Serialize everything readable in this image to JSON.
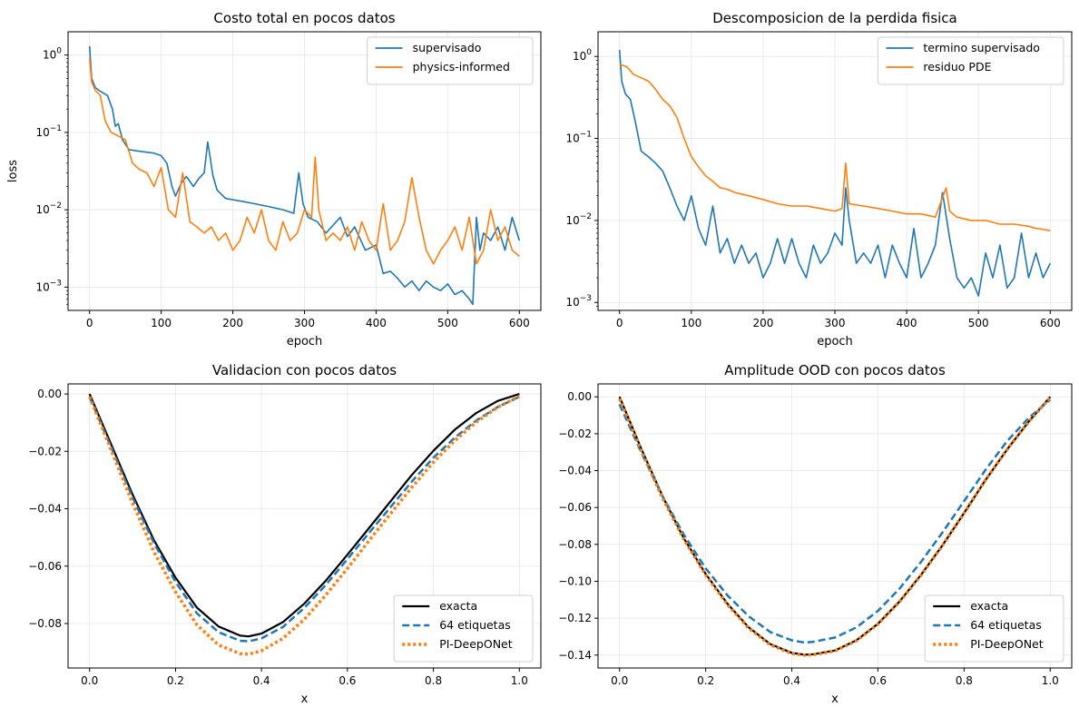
{
  "figure": {
    "panels": [
      {
        "title": "Costo total en pocos datos",
        "xlabel": "epoch",
        "ylabel": "loss"
      },
      {
        "title": "Descomposicion de la perdida fisica",
        "xlabel": "epoch",
        "ylabel": ""
      },
      {
        "title": "Validacion con pocos datos",
        "xlabel": "x",
        "ylabel": ""
      },
      {
        "title": "Amplitude OOD con pocos datos",
        "xlabel": "x",
        "ylabel": ""
      }
    ]
  },
  "chart_data": [
    {
      "type": "line",
      "title": "Costo total en pocos datos",
      "xlabel": "epoch",
      "ylabel": "loss",
      "xlim": [
        -30,
        630
      ],
      "ylim": [
        0.0005,
        2.0
      ],
      "yscale": "log",
      "xticks": [
        "0",
        "100",
        "200",
        "300",
        "400",
        "500",
        "600"
      ],
      "yticks": [
        "10^-3",
        "10^-2",
        "10^-1",
        "10^0"
      ],
      "grid": true,
      "legend_position": "top-right",
      "series": [
        {
          "name": "supervisado",
          "color": "#1f77b4",
          "x": [
            0,
            3,
            8,
            15,
            25,
            32,
            36,
            40,
            46,
            55,
            70,
            90,
            100,
            108,
            115,
            120,
            128,
            135,
            145,
            152,
            160,
            165,
            168,
            172,
            178,
            190,
            210,
            230,
            250,
            270,
            285,
            292,
            298,
            305,
            318,
            330,
            350,
            360,
            370,
            385,
            400,
            410,
            420,
            430,
            440,
            450,
            460,
            470,
            480,
            490,
            500,
            510,
            520,
            530,
            535,
            540,
            545,
            550,
            560,
            570,
            580,
            590,
            600
          ],
          "y": [
            1.3,
            0.5,
            0.38,
            0.34,
            0.3,
            0.2,
            0.12,
            0.13,
            0.08,
            0.06,
            0.057,
            0.054,
            0.05,
            0.04,
            0.02,
            0.015,
            0.022,
            0.027,
            0.02,
            0.025,
            0.03,
            0.075,
            0.05,
            0.028,
            0.018,
            0.014,
            0.013,
            0.012,
            0.011,
            0.01,
            0.009,
            0.03,
            0.012,
            0.008,
            0.007,
            0.005,
            0.008,
            0.0045,
            0.006,
            0.003,
            0.0035,
            0.0015,
            0.0016,
            0.0013,
            0.001,
            0.0012,
            0.0009,
            0.0012,
            0.001,
            0.0009,
            0.0011,
            0.0008,
            0.0009,
            0.0007,
            0.0006,
            0.008,
            0.003,
            0.005,
            0.004,
            0.006,
            0.003,
            0.008,
            0.004
          ]
        },
        {
          "name": "physics-informed",
          "color": "#ff7f0e",
          "x": [
            0,
            3,
            8,
            15,
            22,
            30,
            40,
            50,
            60,
            70,
            80,
            90,
            100,
            110,
            120,
            130,
            140,
            150,
            160,
            170,
            180,
            190,
            200,
            210,
            220,
            230,
            240,
            250,
            260,
            270,
            280,
            290,
            300,
            310,
            315,
            320,
            330,
            340,
            350,
            360,
            370,
            380,
            390,
            400,
            410,
            420,
            430,
            440,
            450,
            460,
            470,
            480,
            490,
            500,
            510,
            520,
            530,
            540,
            550,
            560,
            570,
            580,
            590,
            600
          ],
          "y": [
            0.9,
            0.45,
            0.35,
            0.3,
            0.14,
            0.1,
            0.09,
            0.08,
            0.04,
            0.033,
            0.03,
            0.02,
            0.035,
            0.01,
            0.008,
            0.03,
            0.007,
            0.006,
            0.005,
            0.006,
            0.004,
            0.005,
            0.003,
            0.004,
            0.008,
            0.005,
            0.01,
            0.004,
            0.003,
            0.007,
            0.004,
            0.005,
            0.01,
            0.008,
            0.048,
            0.01,
            0.004,
            0.005,
            0.004,
            0.006,
            0.003,
            0.007,
            0.004,
            0.003,
            0.012,
            0.003,
            0.004,
            0.007,
            0.026,
            0.008,
            0.003,
            0.002,
            0.003,
            0.004,
            0.006,
            0.003,
            0.008,
            0.002,
            0.003,
            0.01,
            0.004,
            0.006,
            0.003,
            0.0025
          ]
        }
      ]
    },
    {
      "type": "line",
      "title": "Descomposicion de la perdida fisica",
      "xlabel": "epoch",
      "ylabel": "",
      "xlim": [
        -30,
        630
      ],
      "ylim": [
        0.0008,
        2.0
      ],
      "yscale": "log",
      "xticks": [
        "0",
        "100",
        "200",
        "300",
        "400",
        "500",
        "600"
      ],
      "yticks": [
        "10^-3",
        "10^-2",
        "10^-1",
        "10^0"
      ],
      "grid": true,
      "legend_position": "top-right",
      "series": [
        {
          "name": "termino supervisado",
          "color": "#1f77b4",
          "x": [
            0,
            3,
            8,
            15,
            22,
            30,
            40,
            50,
            60,
            70,
            80,
            90,
            100,
            110,
            120,
            130,
            140,
            150,
            160,
            170,
            180,
            190,
            200,
            210,
            220,
            230,
            240,
            250,
            260,
            270,
            280,
            290,
            300,
            310,
            315,
            320,
            330,
            340,
            350,
            360,
            370,
            380,
            390,
            400,
            410,
            420,
            430,
            440,
            450,
            460,
            470,
            480,
            490,
            500,
            510,
            520,
            530,
            540,
            550,
            560,
            570,
            580,
            590,
            600
          ],
          "y": [
            1.2,
            0.5,
            0.35,
            0.3,
            0.16,
            0.07,
            0.06,
            0.05,
            0.04,
            0.025,
            0.015,
            0.01,
            0.02,
            0.008,
            0.005,
            0.015,
            0.004,
            0.006,
            0.003,
            0.005,
            0.003,
            0.004,
            0.002,
            0.003,
            0.006,
            0.003,
            0.006,
            0.003,
            0.002,
            0.005,
            0.003,
            0.004,
            0.007,
            0.005,
            0.025,
            0.01,
            0.003,
            0.004,
            0.003,
            0.005,
            0.002,
            0.005,
            0.003,
            0.002,
            0.008,
            0.002,
            0.003,
            0.005,
            0.022,
            0.006,
            0.002,
            0.0015,
            0.002,
            0.0012,
            0.004,
            0.002,
            0.005,
            0.0015,
            0.002,
            0.007,
            0.002,
            0.004,
            0.002,
            0.003
          ]
        },
        {
          "name": "residuo PDE",
          "color": "#ff7f0e",
          "x": [
            0,
            10,
            20,
            30,
            40,
            50,
            60,
            70,
            80,
            90,
            100,
            110,
            120,
            130,
            140,
            150,
            160,
            180,
            200,
            220,
            240,
            260,
            280,
            300,
            310,
            315,
            320,
            340,
            360,
            380,
            400,
            420,
            440,
            455,
            460,
            470,
            490,
            510,
            530,
            550,
            570,
            580,
            590,
            600
          ],
          "y": [
            0.8,
            0.75,
            0.6,
            0.55,
            0.5,
            0.4,
            0.3,
            0.25,
            0.18,
            0.1,
            0.06,
            0.045,
            0.035,
            0.03,
            0.025,
            0.024,
            0.022,
            0.02,
            0.018,
            0.016,
            0.015,
            0.015,
            0.014,
            0.013,
            0.014,
            0.05,
            0.016,
            0.015,
            0.014,
            0.013,
            0.012,
            0.012,
            0.011,
            0.025,
            0.013,
            0.011,
            0.01,
            0.01,
            0.009,
            0.009,
            0.0085,
            0.008,
            0.0078,
            0.0075
          ]
        }
      ]
    },
    {
      "type": "line",
      "title": "Validacion con pocos datos",
      "xlabel": "x",
      "ylabel": "",
      "xlim": [
        -0.05,
        1.05
      ],
      "ylim": [
        -0.0955,
        0.0035
      ],
      "yscale": "linear",
      "xticks": [
        "0.0",
        "0.2",
        "0.4",
        "0.6",
        "0.8",
        "1.0"
      ],
      "yticks": [
        "−0.08",
        "−0.06",
        "−0.04",
        "−0.02",
        "0.00"
      ],
      "grid": true,
      "legend_position": "bottom-right",
      "series": [
        {
          "name": "exacta",
          "color": "#000000",
          "style": "solid",
          "x": [
            0,
            0.05,
            0.1,
            0.15,
            0.2,
            0.25,
            0.3,
            0.35,
            0.37,
            0.4,
            0.45,
            0.5,
            0.55,
            0.6,
            0.65,
            0.7,
            0.75,
            0.8,
            0.85,
            0.9,
            0.95,
            1.0
          ],
          "y": [
            0,
            -0.0175,
            -0.035,
            -0.051,
            -0.064,
            -0.0745,
            -0.081,
            -0.0842,
            -0.0845,
            -0.0835,
            -0.0795,
            -0.073,
            -0.065,
            -0.056,
            -0.0468,
            -0.0375,
            -0.0282,
            -0.0198,
            -0.0124,
            -0.0066,
            -0.0024,
            0
          ]
        },
        {
          "name": "64 etiquetas",
          "color": "#1f77b4",
          "style": "dashed",
          "x": [
            0,
            0.05,
            0.1,
            0.15,
            0.2,
            0.25,
            0.3,
            0.35,
            0.37,
            0.4,
            0.45,
            0.5,
            0.55,
            0.6,
            0.65,
            0.7,
            0.75,
            0.8,
            0.85,
            0.9,
            0.95,
            1.0
          ],
          "y": [
            -0.001,
            -0.0185,
            -0.036,
            -0.052,
            -0.0655,
            -0.0765,
            -0.083,
            -0.086,
            -0.0862,
            -0.0852,
            -0.0812,
            -0.0745,
            -0.0665,
            -0.0575,
            -0.0485,
            -0.0395,
            -0.0305,
            -0.0222,
            -0.0152,
            -0.0092,
            -0.0045,
            -0.001
          ]
        },
        {
          "name": "PI-DeepONet",
          "color": "#ff7f0e",
          "style": "dotted",
          "x": [
            0,
            0.05,
            0.1,
            0.15,
            0.2,
            0.25,
            0.3,
            0.35,
            0.37,
            0.4,
            0.45,
            0.5,
            0.55,
            0.6,
            0.65,
            0.7,
            0.75,
            0.8,
            0.85,
            0.9,
            0.95,
            1.0
          ],
          "y": [
            -0.001,
            -0.0195,
            -0.038,
            -0.055,
            -0.069,
            -0.0805,
            -0.0875,
            -0.0905,
            -0.0907,
            -0.0895,
            -0.0852,
            -0.0785,
            -0.07,
            -0.0608,
            -0.0512,
            -0.0418,
            -0.0325,
            -0.0238,
            -0.0162,
            -0.0098,
            -0.0046,
            -0.0008
          ]
        }
      ]
    },
    {
      "type": "line",
      "title": "Amplitude OOD con pocos datos",
      "xlabel": "x",
      "ylabel": "",
      "xlim": [
        -0.05,
        1.05
      ],
      "ylim": [
        -0.147,
        0.007
      ],
      "yscale": "linear",
      "xticks": [
        "0.0",
        "0.2",
        "0.4",
        "0.6",
        "0.8",
        "1.0"
      ],
      "yticks": [
        "−0.14",
        "−0.12",
        "−0.10",
        "−0.08",
        "−0.06",
        "−0.04",
        "−0.02",
        "0.00"
      ],
      "grid": true,
      "legend_position": "bottom-right",
      "series": [
        {
          "name": "exacta",
          "color": "#000000",
          "style": "solid",
          "x": [
            0,
            0.05,
            0.1,
            0.15,
            0.2,
            0.25,
            0.3,
            0.35,
            0.4,
            0.43,
            0.45,
            0.5,
            0.55,
            0.6,
            0.65,
            0.7,
            0.75,
            0.8,
            0.85,
            0.9,
            0.95,
            1.0
          ],
          "y": [
            0,
            -0.028,
            -0.054,
            -0.077,
            -0.096,
            -0.112,
            -0.125,
            -0.134,
            -0.1388,
            -0.1398,
            -0.1395,
            -0.1375,
            -0.132,
            -0.123,
            -0.111,
            -0.0965,
            -0.0805,
            -0.063,
            -0.045,
            -0.0285,
            -0.0135,
            0
          ]
        },
        {
          "name": "64 etiquetas",
          "color": "#1f77b4",
          "style": "dashed",
          "x": [
            0,
            0.05,
            0.1,
            0.15,
            0.2,
            0.25,
            0.3,
            0.35,
            0.4,
            0.43,
            0.45,
            0.5,
            0.55,
            0.6,
            0.65,
            0.7,
            0.75,
            0.8,
            0.85,
            0.9,
            0.95,
            1.0
          ],
          "y": [
            -0.004,
            -0.03,
            -0.054,
            -0.075,
            -0.093,
            -0.1075,
            -0.119,
            -0.1275,
            -0.132,
            -0.1332,
            -0.1328,
            -0.1305,
            -0.125,
            -0.116,
            -0.104,
            -0.0895,
            -0.0735,
            -0.0565,
            -0.0395,
            -0.024,
            -0.0115,
            -0.0015
          ]
        },
        {
          "name": "PI-DeepONet",
          "color": "#ff7f0e",
          "style": "dotted",
          "x": [
            0,
            0.05,
            0.1,
            0.15,
            0.2,
            0.25,
            0.3,
            0.35,
            0.4,
            0.43,
            0.45,
            0.5,
            0.55,
            0.6,
            0.65,
            0.7,
            0.75,
            0.8,
            0.85,
            0.9,
            0.95,
            1.0
          ],
          "y": [
            -0.001,
            -0.029,
            -0.055,
            -0.0775,
            -0.0965,
            -0.1125,
            -0.1255,
            -0.1345,
            -0.1392,
            -0.14,
            -0.1398,
            -0.1378,
            -0.1322,
            -0.1232,
            -0.1112,
            -0.0967,
            -0.0806,
            -0.063,
            -0.045,
            -0.0285,
            -0.0135,
            -0.0005
          ]
        }
      ]
    }
  ]
}
